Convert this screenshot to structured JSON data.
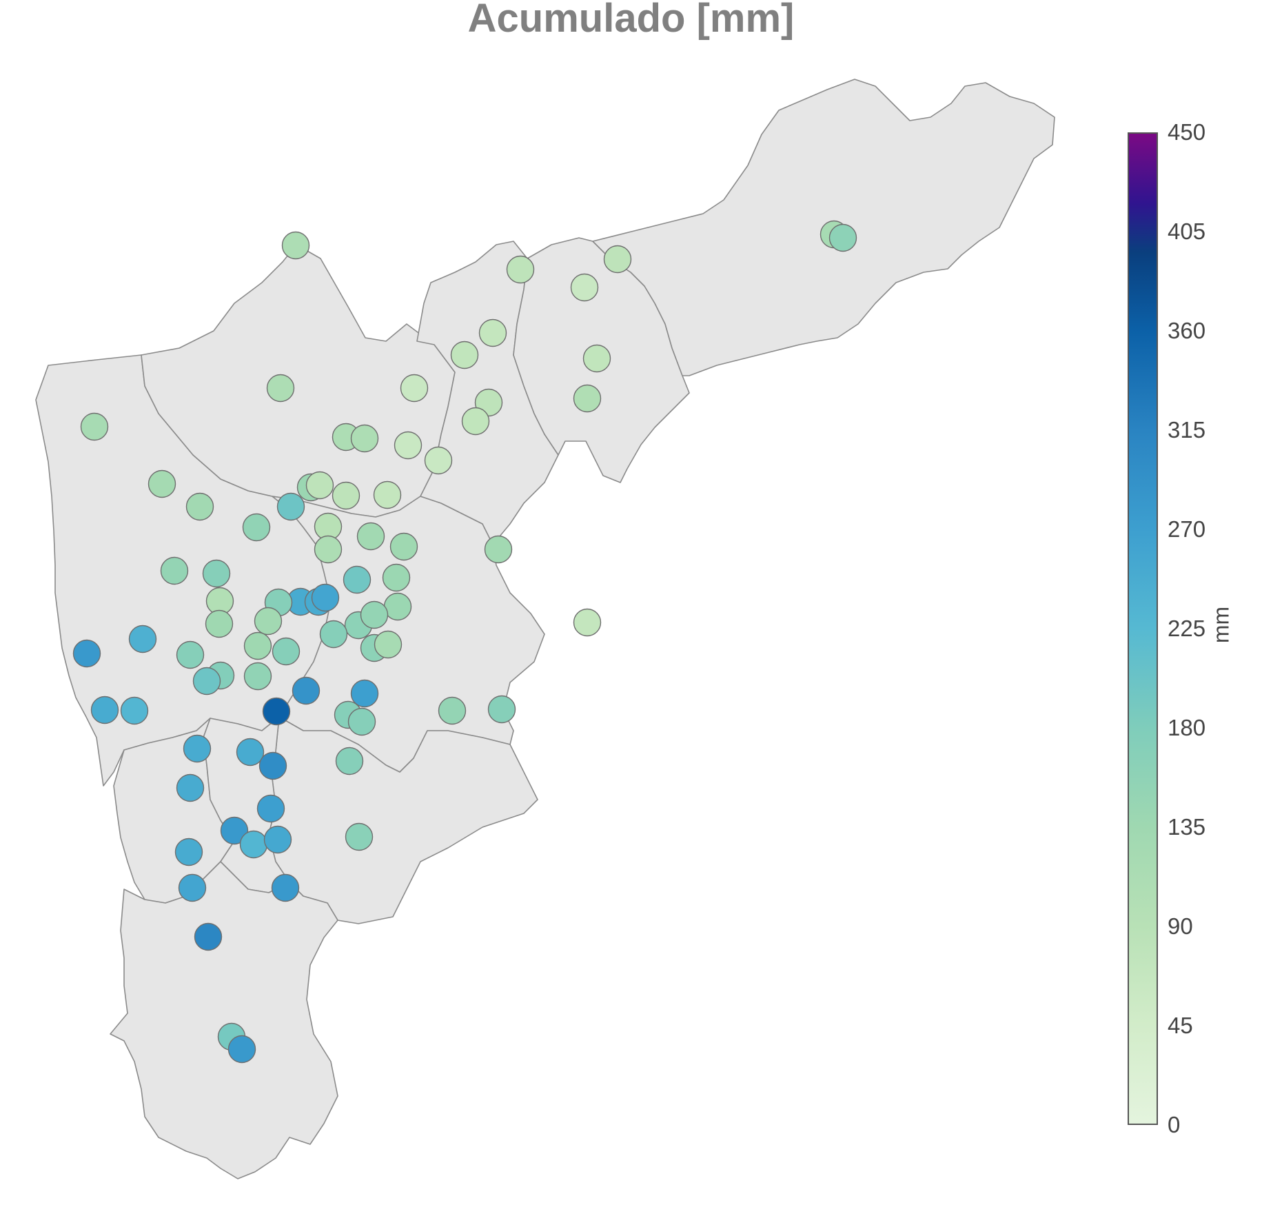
{
  "title": "Acumulado [mm]",
  "colorbar": {
    "title": "mm",
    "min": 0,
    "max": 450,
    "ticks": [
      "0",
      "45",
      "90",
      "135",
      "180",
      "225",
      "270",
      "315",
      "360",
      "405",
      "450"
    ],
    "colorscale": [
      [
        0,
        "#e4f4de"
      ],
      [
        0.1,
        "#d2ecc9"
      ],
      [
        0.2,
        "#b8e1b6"
      ],
      [
        0.3,
        "#9fd8b1"
      ],
      [
        0.4,
        "#7fcdbb"
      ],
      [
        0.5,
        "#56b9d2"
      ],
      [
        0.6,
        "#3d9fcf"
      ],
      [
        0.7,
        "#2a84c2"
      ],
      [
        0.8,
        "#0c61a8"
      ],
      [
        0.88,
        "#0a3f7e"
      ],
      [
        0.93,
        "#30148f"
      ],
      [
        1,
        "#7a0a84"
      ]
    ]
  },
  "chart_data": {
    "type": "scatter",
    "description_units": "accumulated precipitation per station, mm",
    "value_range": [
      0,
      450
    ]
  }
}
